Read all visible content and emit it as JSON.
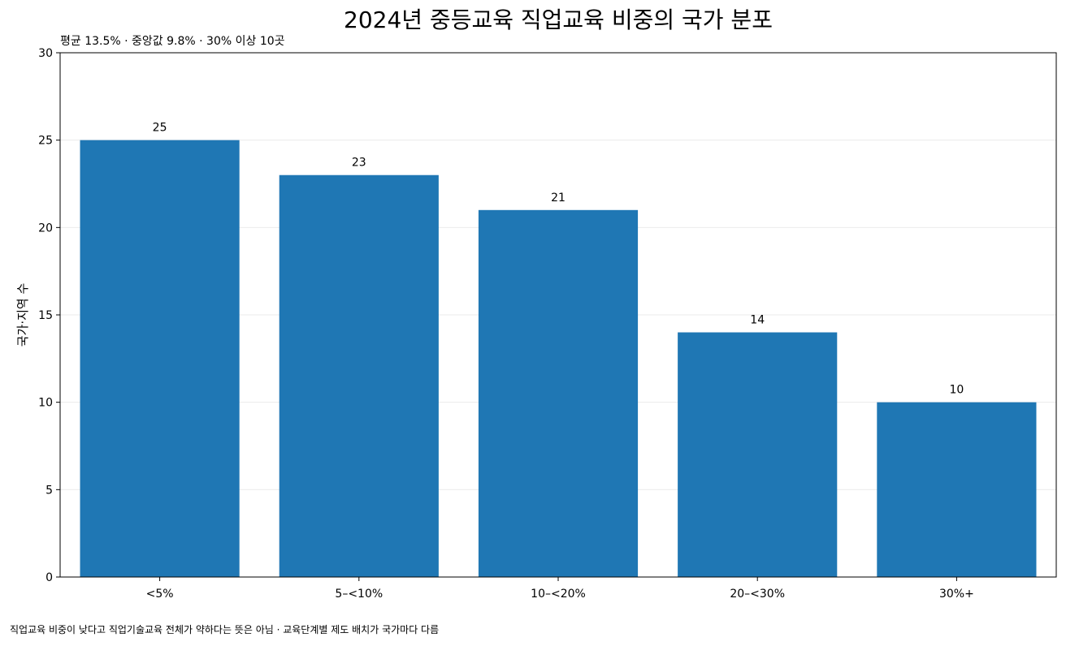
{
  "chart_data": {
    "type": "bar",
    "title": "2024년 중등교육 직업교육 비중의 국가 분포",
    "subtitle": "평균 13.5% · 중앙값 9.8% · 30% 이상 10곳",
    "xlabel": "",
    "ylabel": "국가·지역 수",
    "categories": [
      "<5%",
      "5–<10%",
      "10–<20%",
      "20–<30%",
      "30%+"
    ],
    "values": [
      25,
      23,
      21,
      14,
      10
    ],
    "ylim": [
      0,
      30
    ],
    "yticks": [
      0,
      5,
      10,
      15,
      20,
      25,
      30
    ],
    "grid": true,
    "colors": {
      "bar": "#1f77b4",
      "grid": "#ebebeb",
      "axis": "#000000"
    }
  },
  "footnote": "직업교육 비중이 낮다고 직업기술교육 전체가 약하다는 뜻은 아님 · 교육단계별 제도 배치가 국가마다 다름"
}
